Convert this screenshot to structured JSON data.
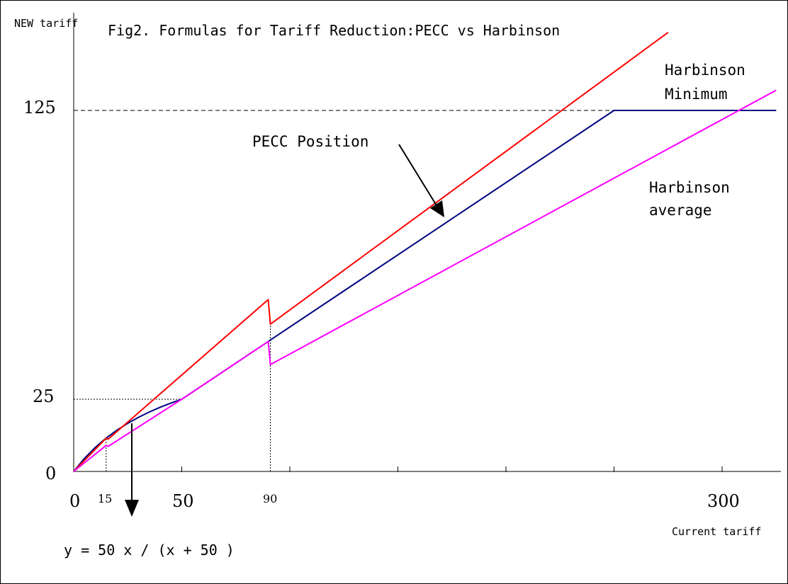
{
  "chart_data": {
    "type": "line",
    "title": "Fig2. Formulas for Tariff Reduction:PECC vs Harbinson",
    "xlabel": "Current tariff",
    "ylabel": "NEW tariff",
    "xlim": [
      0,
      325
    ],
    "ylim": [
      0,
      152
    ],
    "x_ticks": [
      0,
      50,
      100,
      150,
      200,
      250,
      300
    ],
    "x_tick_labels": [
      {
        "value": 0,
        "label": "0"
      },
      {
        "value": 15,
        "label": "15"
      },
      {
        "value": 50,
        "label": "50"
      },
      {
        "value": 90,
        "label": "90"
      },
      {
        "value": 300,
        "label": "300"
      }
    ],
    "y_tick_labels": [
      {
        "value": 0,
        "label": "0"
      },
      {
        "value": 25,
        "label": "25"
      },
      {
        "value": 125,
        "label": "125"
      }
    ],
    "series": [
      {
        "name": "PECC Position",
        "color": "#000080",
        "points": [
          [
            0,
            0
          ],
          [
            5,
            4.55
          ],
          [
            10,
            8.33
          ],
          [
            15,
            11.54
          ],
          [
            20,
            14.29
          ],
          [
            25,
            16.67
          ],
          [
            30,
            18.75
          ],
          [
            35,
            20.59
          ],
          [
            40,
            22.22
          ],
          [
            45,
            23.68
          ],
          [
            50,
            25
          ],
          [
            90,
            45
          ],
          [
            250,
            125
          ],
          [
            325,
            125
          ]
        ]
      },
      {
        "name": "Harbinson Minimum",
        "color": "#ff0000",
        "points": [
          [
            0,
            0
          ],
          [
            15,
            11.5
          ],
          [
            16,
            11.2
          ],
          [
            90,
            59.5
          ],
          [
            91,
            51
          ],
          [
            275,
            152
          ]
        ]
      },
      {
        "name": "Harbinson average",
        "color": "#ff00ff",
        "points": [
          [
            0,
            0
          ],
          [
            15,
            9.0
          ],
          [
            16,
            8.7
          ],
          [
            50,
            25
          ],
          [
            90,
            45
          ],
          [
            91,
            37
          ],
          [
            325,
            132
          ]
        ]
      }
    ],
    "reference_lines": [
      {
        "style": "dashed",
        "from": [
          0,
          125
        ],
        "to": [
          325,
          125
        ]
      },
      {
        "style": "dotted",
        "from": [
          0,
          25
        ],
        "to": [
          50,
          25
        ]
      },
      {
        "style": "dotted",
        "from": [
          15,
          0
        ],
        "to": [
          15,
          11.5
        ]
      },
      {
        "style": "dotted",
        "from": [
          91,
          0
        ],
        "to": [
          91,
          51
        ]
      }
    ],
    "annotations": {
      "pecc_label": "PECC Position",
      "harbinson_min_line1": "Harbinson",
      "harbinson_min_line2": "Minimum",
      "harbinson_avg_line1": "Harbinson",
      "harbinson_avg_line2": "average",
      "formula": "y = 50 x / (x + 50 )"
    },
    "grid": false,
    "legend": "none"
  }
}
